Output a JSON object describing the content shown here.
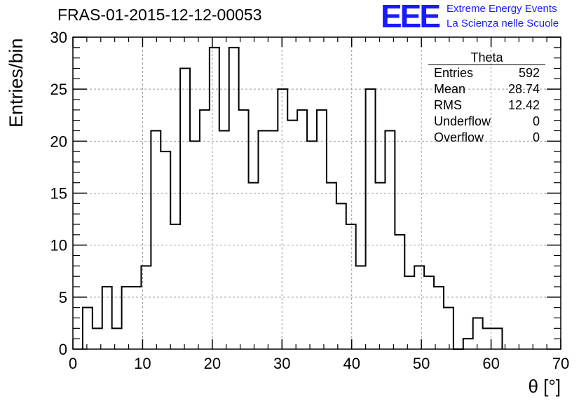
{
  "title": "FRAS-01-2015-12-12-00053",
  "logo": {
    "mark": "EEE",
    "line1": "Extreme Energy Events",
    "line2": "La Scienza nelle Scuole"
  },
  "stats_box": {
    "title": "Theta",
    "rows": [
      {
        "label": "Entries",
        "value": "592"
      },
      {
        "label": "Mean",
        "value": "28.74"
      },
      {
        "label": "RMS",
        "value": "12.42"
      },
      {
        "label": "Underflow",
        "value": "0"
      },
      {
        "label": "Overflow",
        "value": "0"
      }
    ]
  },
  "chart_data": {
    "type": "bar",
    "style": "step-histogram",
    "xlabel": "θ [°]",
    "ylabel": "Entries/bin",
    "xlim": [
      0,
      70
    ],
    "ylim": [
      0,
      30
    ],
    "xticks": [
      0,
      10,
      20,
      30,
      40,
      50,
      60,
      70
    ],
    "yticks": [
      0,
      5,
      10,
      15,
      20,
      25,
      30
    ],
    "grid": true,
    "bin_width": 1.4,
    "bin_start": 1.4,
    "values": [
      4,
      2,
      6,
      2,
      6,
      6,
      8,
      21,
      19,
      12,
      27,
      20,
      23,
      29,
      21,
      29,
      23,
      16,
      21,
      21,
      25,
      22,
      23,
      20,
      23,
      16,
      14,
      12,
      8,
      25,
      16,
      21,
      11,
      7,
      8,
      7,
      6,
      4,
      0,
      1,
      3,
      2,
      2
    ],
    "line_color": "#000000"
  }
}
